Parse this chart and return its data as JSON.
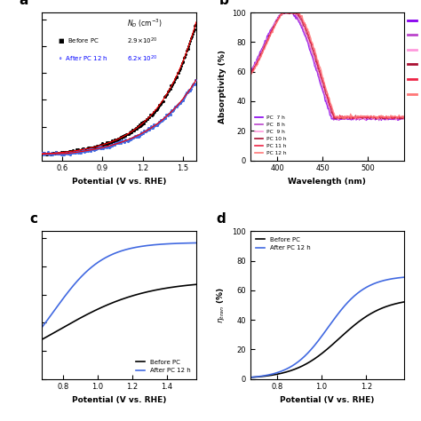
{
  "panel_a": {
    "label": "a",
    "xlabel": "Potential (V vs. RHE)",
    "xlim": [
      0.45,
      1.6
    ],
    "ylim": [
      0,
      1
    ],
    "xticks": [
      0.6,
      0.9,
      1.2,
      1.5
    ],
    "legend": [
      {
        "label": "Before PC",
        "nd": "2.9×10^{20}",
        "color": "black",
        "marker": "s"
      },
      {
        "label": "After PC 12 h",
        "nd": "6.2×10^{20}",
        "color": "blue",
        "marker": "o"
      }
    ]
  },
  "panel_b": {
    "label": "b",
    "xlabel": "Wavelength (nm)",
    "ylabel": "Absorptivity (%)",
    "xlim": [
      370,
      540
    ],
    "ylim": [
      0,
      100
    ],
    "xticks": [
      400,
      450,
      500
    ],
    "yticks": [
      0,
      20,
      40,
      60,
      80,
      100
    ],
    "colors": [
      "#8800EE",
      "#BB44CC",
      "#FF99DD",
      "#AA1133",
      "#EE2244",
      "#FF7777"
    ],
    "labels": [
      "PC  7 h",
      "PC  8 h",
      "PC  9 h",
      "PC 10 h",
      "PC 11 h",
      "PC 12 h"
    ]
  },
  "panel_c": {
    "label": "c",
    "xlabel": "Potential (V vs. RHE)",
    "xlim": [
      0.68,
      1.57
    ],
    "ylim": [
      0,
      1.05
    ],
    "xticks": [
      0.8,
      1.0,
      1.2,
      1.4
    ]
  },
  "panel_d": {
    "label": "d",
    "xlabel": "Potential (V vs. RHE)",
    "ylabel": "$\\eta_{tran}$ (%)",
    "xlim": [
      0.68,
      1.37
    ],
    "ylim": [
      0,
      100
    ],
    "xticks": [
      0.8,
      1.0,
      1.2
    ],
    "yticks": [
      0,
      20,
      40,
      60,
      80,
      100
    ]
  }
}
